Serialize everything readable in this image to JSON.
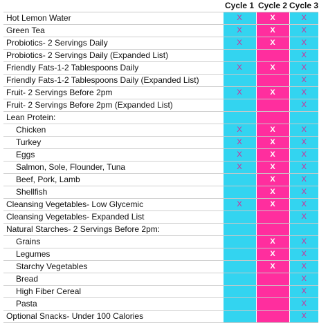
{
  "header": {
    "blank": "",
    "cycle1": "Cycle 1",
    "cycle2": "Cycle 2",
    "cycle3": "Cycle 3"
  },
  "colors": {
    "cycle1_bg": "#33d4f0",
    "cycle2_bg": "#ff2e9e",
    "cycle3_bg": "#33d4f0",
    "mark_color": "#d62896"
  },
  "rows": [
    {
      "label": "Hot Lemon Water",
      "indent": false,
      "c1": "X",
      "c2": "X",
      "c3": "X"
    },
    {
      "label": "Green Tea",
      "indent": false,
      "c1": "X",
      "c2": "X",
      "c3": "X"
    },
    {
      "label": "Probiotics- 2 Servings Daily",
      "indent": false,
      "c1": "X",
      "c2": "X",
      "c3": "X"
    },
    {
      "label": "Probiotics- 2 Servings Daily (Expanded List)",
      "indent": false,
      "c1": "",
      "c2": "",
      "c3": "X"
    },
    {
      "label": "Friendly Fats-1-2 Tablespoons Daily",
      "indent": false,
      "c1": "X",
      "c2": "X",
      "c3": "X"
    },
    {
      "label": "Friendly Fats-1-2 Tablespoons Daily (Expanded List)",
      "indent": false,
      "c1": "",
      "c2": "",
      "c3": "X"
    },
    {
      "label": "Fruit- 2 Servings Before 2pm",
      "indent": false,
      "c1": "X",
      "c2": "X",
      "c3": "X"
    },
    {
      "label": "Fruit- 2 Servings Before 2pm (Expanded List)",
      "indent": false,
      "c1": "",
      "c2": "",
      "c3": "X"
    },
    {
      "label": "Lean Protein:",
      "indent": false,
      "c1": "",
      "c2": "",
      "c3": ""
    },
    {
      "label": "Chicken",
      "indent": true,
      "c1": "X",
      "c2": "X",
      "c3": "X"
    },
    {
      "label": "Turkey",
      "indent": true,
      "c1": "X",
      "c2": "X",
      "c3": "X"
    },
    {
      "label": "Eggs",
      "indent": true,
      "c1": "X",
      "c2": "X",
      "c3": "X"
    },
    {
      "label": "Salmon, Sole, Flounder, Tuna",
      "indent": true,
      "c1": "X",
      "c2": "X",
      "c3": "X"
    },
    {
      "label": "Beef, Pork, Lamb",
      "indent": true,
      "c1": "",
      "c2": "X",
      "c3": "X"
    },
    {
      "label": "Shellfish",
      "indent": true,
      "c1": "",
      "c2": "X",
      "c3": "X"
    },
    {
      "label": "Cleansing Vegetables- Low Glycemic",
      "indent": false,
      "c1": "X",
      "c2": "X",
      "c3": "X"
    },
    {
      "label": "Cleansing Vegetables- Expanded List",
      "indent": false,
      "c1": "",
      "c2": "",
      "c3": "X"
    },
    {
      "label": "Natural Starches- 2 Servings Before 2pm:",
      "indent": false,
      "c1": "",
      "c2": "",
      "c3": ""
    },
    {
      "label": "Grains",
      "indent": true,
      "c1": "",
      "c2": "X",
      "c3": "X"
    },
    {
      "label": "Legumes",
      "indent": true,
      "c1": "",
      "c2": "X",
      "c3": "X"
    },
    {
      "label": "Starchy Vegetables",
      "indent": true,
      "c1": "",
      "c2": "X",
      "c3": "X"
    },
    {
      "label": "Bread",
      "indent": true,
      "c1": "",
      "c2": "",
      "c3": "X"
    },
    {
      "label": "High Fiber Cereal",
      "indent": true,
      "c1": "",
      "c2": "",
      "c3": "X"
    },
    {
      "label": "Pasta",
      "indent": true,
      "c1": "",
      "c2": "",
      "c3": "X"
    },
    {
      "label": "Optional Snacks- Under 100 Calories",
      "indent": false,
      "c1": "",
      "c2": "",
      "c3": "X"
    }
  ]
}
